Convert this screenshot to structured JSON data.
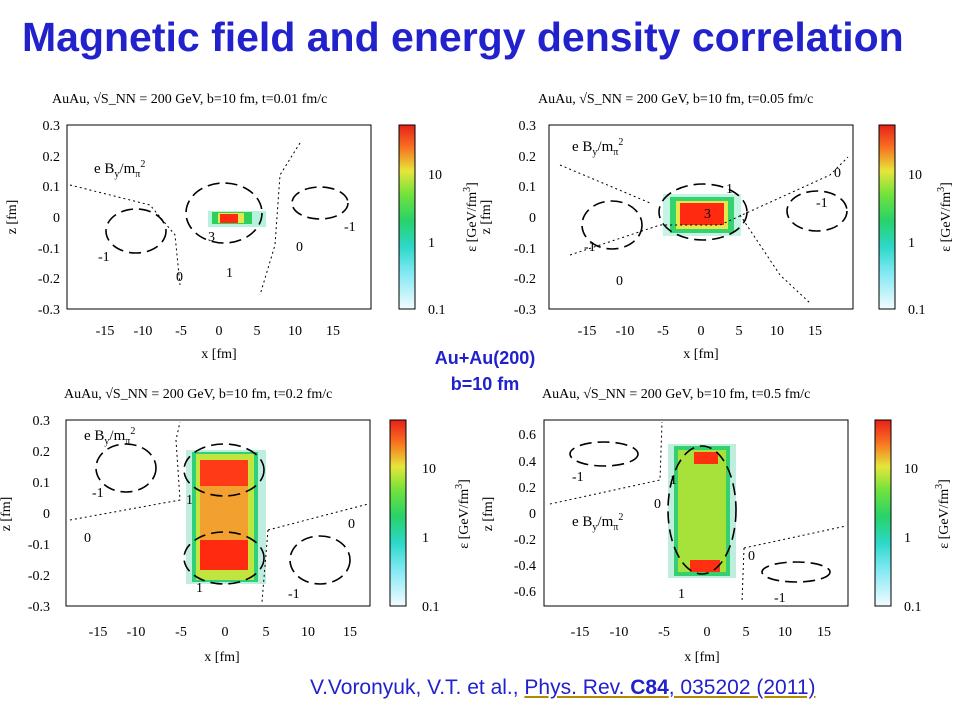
{
  "title": "Magnetic field and energy density correlation",
  "center_note": {
    "line1": "Au+Au(200)",
    "line2": "b=10 fm"
  },
  "citation": {
    "authors": "V.Voronyuk, V.T. et  al., ",
    "ref": "Phys. Rev. ",
    "vol": "C84",
    "rest": ", 035202  (2011)"
  },
  "colorbar": {
    "label": "ε [GeV/fm³]",
    "ticks": [
      "10",
      "1",
      "0.1"
    ]
  },
  "field_label": "e B_y/m_π²",
  "chart_data": [
    {
      "type": "heatmap",
      "title": "AuAu,  √S_NN = 200 GeV,  b=10 fm,  t=0.01 fm/c",
      "xlabel": "x [fm]",
      "ylabel": "z [fm]",
      "xlim": [
        -20,
        20
      ],
      "ylim": [
        -0.3,
        0.3
      ],
      "xticks": [
        "-15",
        "-10",
        "-5",
        "0",
        "5",
        "10",
        "15"
      ],
      "yticks": [
        "0.3",
        "0.2",
        "0.1",
        "0",
        "-0.1",
        "-0.2",
        "-0.3"
      ],
      "contour_labels": [
        "-1",
        "3",
        "0",
        "1",
        "-1",
        "0"
      ],
      "colorbar_ticks": [
        "10",
        "1",
        "0.1"
      ]
    },
    {
      "type": "heatmap",
      "title": "AuAu,  √S_NN = 200 GeV,  b=10 fm,  t=0.05 fm/c",
      "xlabel": "x [fm]",
      "ylabel": "z [fm]",
      "xlim": [
        -20,
        20
      ],
      "ylim": [
        -0.3,
        0.3
      ],
      "xticks": [
        "-15",
        "-10",
        "-5",
        "0",
        "5",
        "10",
        "15"
      ],
      "yticks": [
        "0.3",
        "0.2",
        "0.1",
        "0",
        "-0.1",
        "-0.2",
        "-0.3"
      ],
      "contour_labels": [
        "0",
        "1",
        "-1",
        "3",
        "-1",
        "0"
      ],
      "colorbar_ticks": [
        "10",
        "1",
        "0.1"
      ]
    },
    {
      "type": "heatmap",
      "title": "AuAu,  √S_NN = 200 GeV,  b=10 fm,  t=0.2 fm/c",
      "xlabel": "x [fm]",
      "ylabel": "z [fm]",
      "xlim": [
        -20,
        20
      ],
      "ylim": [
        -0.3,
        0.3
      ],
      "xticks": [
        "-15",
        "-10",
        "-5",
        "0",
        "5",
        "10",
        "15"
      ],
      "yticks": [
        "0.3",
        "0.2",
        "0.1",
        "0",
        "-0.1",
        "-0.2",
        "-0.3"
      ],
      "contour_labels": [
        "-1",
        "1",
        "0",
        "0",
        "1",
        "-1"
      ],
      "colorbar_ticks": [
        "10",
        "1",
        "0.1"
      ]
    },
    {
      "type": "heatmap",
      "title": "AuAu,  √S_NN = 200 GeV,  b=10 fm,  t=0.5 fm/c",
      "xlabel": "x [fm]",
      "ylabel": "z [fm]",
      "xlim": [
        -20,
        20
      ],
      "ylim": [
        -0.7,
        0.7
      ],
      "xticks": [
        "-15",
        "-10",
        "-5",
        "0",
        "5",
        "10",
        "15"
      ],
      "yticks": [
        "0.6",
        "0.4",
        "0.2",
        "0",
        "-0.2",
        "-0.4",
        "-0.6"
      ],
      "contour_labels": [
        "-1",
        "1",
        "0",
        "0",
        "1",
        "-1"
      ],
      "colorbar_ticks": [
        "10",
        "1",
        "0.1"
      ]
    }
  ]
}
